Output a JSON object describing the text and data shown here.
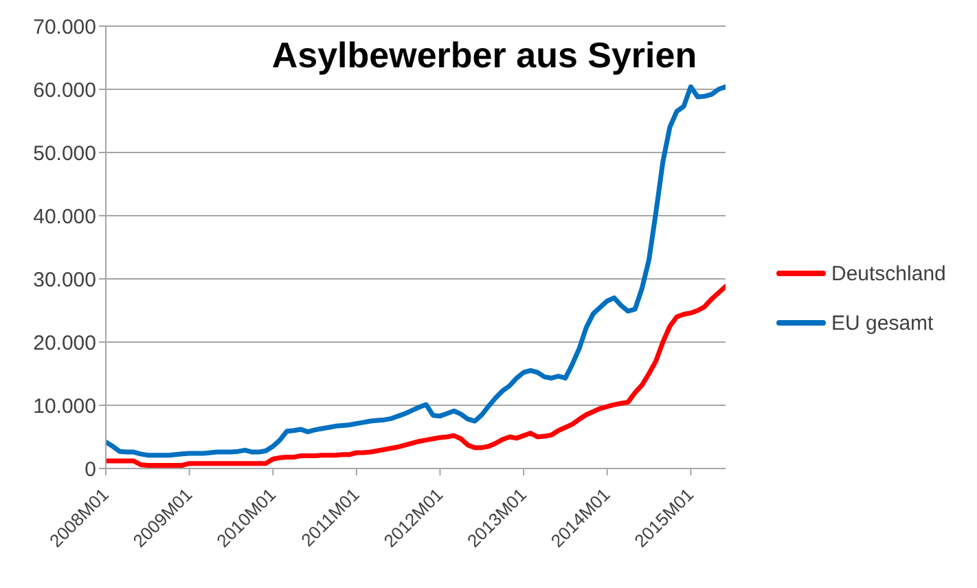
{
  "chart_data": {
    "type": "line",
    "title": "Asylbewerber aus Syrien",
    "categories": [
      "2008M01",
      null,
      null,
      null,
      null,
      null,
      null,
      null,
      null,
      null,
      null,
      null,
      "2009M01",
      null,
      null,
      null,
      null,
      null,
      null,
      null,
      null,
      null,
      null,
      null,
      "2010M01",
      null,
      null,
      null,
      null,
      null,
      null,
      null,
      null,
      null,
      null,
      null,
      "2011M01",
      null,
      null,
      null,
      null,
      null,
      null,
      null,
      null,
      null,
      null,
      null,
      "2012M01",
      null,
      null,
      null,
      null,
      null,
      null,
      null,
      null,
      null,
      null,
      null,
      "2013M01",
      null,
      null,
      null,
      null,
      null,
      null,
      null,
      null,
      null,
      null,
      null,
      "2014M01",
      null,
      null,
      null,
      null,
      null,
      null,
      null,
      null,
      null,
      null,
      null,
      "2015M01",
      null,
      null,
      null,
      null,
      null
    ],
    "series": [
      {
        "name": "Deutschland",
        "color": "#ff0000",
        "values": [
          1200,
          1200,
          1200,
          1200,
          1200,
          600,
          500,
          500,
          500,
          500,
          500,
          500,
          800,
          800,
          800,
          800,
          800,
          800,
          800,
          800,
          800,
          800,
          800,
          800,
          1500,
          1700,
          1800,
          1800,
          2000,
          2000,
          2000,
          2100,
          2100,
          2100,
          2200,
          2200,
          2500,
          2500,
          2600,
          2800,
          3000,
          3200,
          3400,
          3700,
          4000,
          4300,
          4500,
          4700,
          4900,
          5000,
          5200,
          4700,
          3700,
          3300,
          3300,
          3500,
          4000,
          4600,
          5000,
          4800,
          5200,
          5600,
          5000,
          5100,
          5300,
          6000,
          6500,
          7000,
          7800,
          8500,
          9000,
          9500,
          9800,
          10100,
          10300,
          10500,
          12000,
          13200,
          15000,
          17000,
          20000,
          22500,
          24000,
          24400,
          24600,
          25000,
          25600,
          26800,
          27800,
          28800
        ]
      },
      {
        "name": "EU gesamt",
        "color": "#0070c0",
        "values": [
          4200,
          3500,
          2700,
          2600,
          2600,
          2300,
          2100,
          2100,
          2100,
          2100,
          2200,
          2300,
          2400,
          2400,
          2400,
          2500,
          2600,
          2600,
          2600,
          2700,
          2900,
          2600,
          2600,
          2800,
          3500,
          4500,
          5900,
          6000,
          6200,
          5800,
          6100,
          6300,
          6500,
          6700,
          6800,
          6900,
          7100,
          7300,
          7500,
          7600,
          7700,
          7900,
          8300,
          8700,
          9200,
          9700,
          10100,
          8400,
          8300,
          8700,
          9100,
          8600,
          7800,
          7500,
          8500,
          9900,
          11200,
          12300,
          13100,
          14300,
          15200,
          15500,
          15200,
          14500,
          14300,
          14600,
          14300,
          16500,
          19000,
          22300,
          24500,
          25500,
          26500,
          27000,
          25800,
          24900,
          25200,
          28500,
          33000,
          40500,
          48500,
          54000,
          56500,
          57300,
          60400,
          58800,
          58900,
          59200,
          60000,
          60400
        ]
      }
    ],
    "ylim": [
      0,
      70000
    ],
    "yticks": [
      {
        "value": 0,
        "label": "0"
      },
      {
        "value": 10000,
        "label": "10.000"
      },
      {
        "value": 20000,
        "label": "20.000"
      },
      {
        "value": 30000,
        "label": "30.000"
      },
      {
        "value": 40000,
        "label": "40.000"
      },
      {
        "value": 50000,
        "label": "50.000"
      },
      {
        "value": 60000,
        "label": "60.000"
      },
      {
        "value": 70000,
        "label": "70.000"
      }
    ],
    "grid": "y",
    "legend": "right",
    "line_style": "solid"
  }
}
